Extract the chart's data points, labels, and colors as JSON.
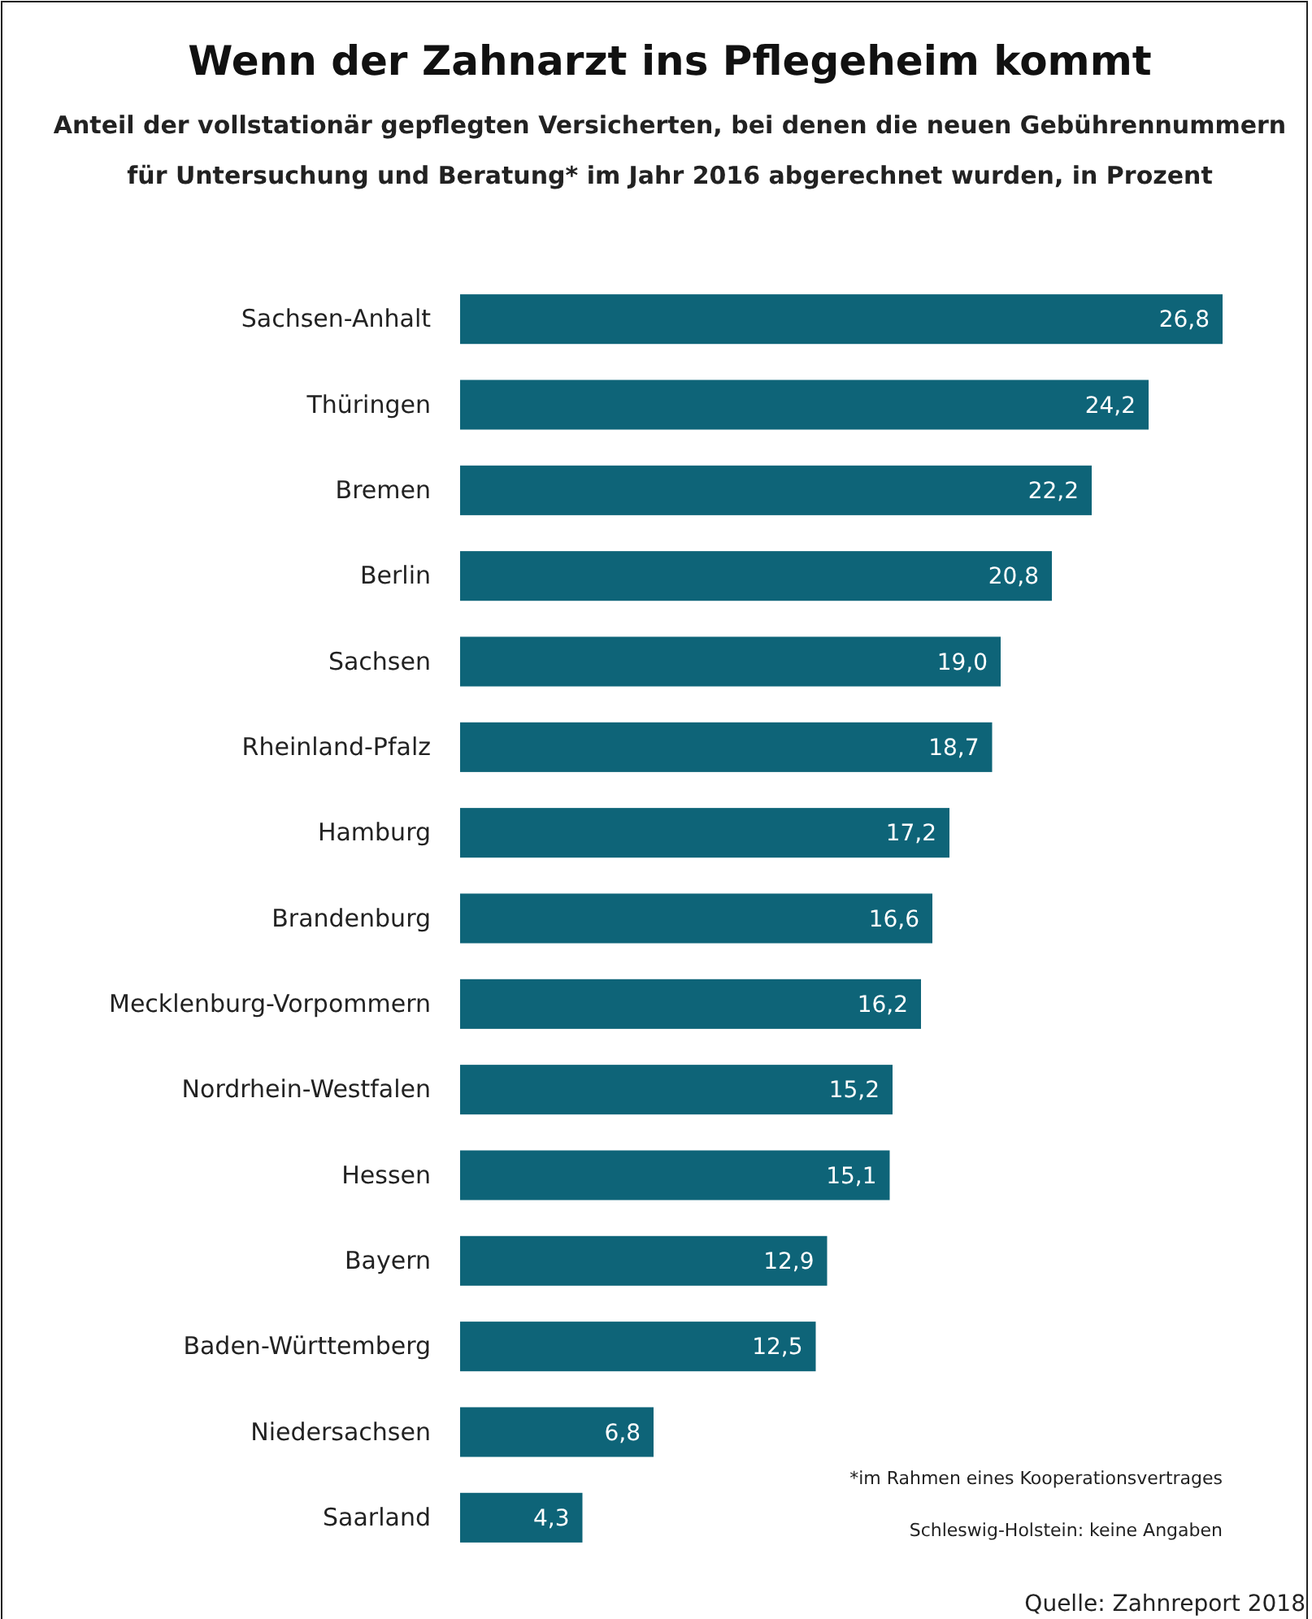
{
  "chart_data": {
    "type": "bar",
    "orientation": "horizontal",
    "title": "Wenn der Zahnarzt ins Pflegeheim kommt",
    "subtitle": "Anteil der vollstationär gepflegten Versicherten, bei denen die neuen Gebührennummern für Untersuchung und Beratung* im Jahr 2016 abgerechnet wurden, in Prozent",
    "categories": [
      "Sachsen-Anhalt",
      "Thüringen",
      "Bremen",
      "Berlin",
      "Sachsen",
      "Rheinland-Pfalz",
      "Hamburg",
      "Brandenburg",
      "Mecklenburg-Vorpommern",
      "Nordrhein-Westfalen",
      "Hessen",
      "Bayern",
      "Baden-Württemberg",
      "Niedersachsen",
      "Saarland"
    ],
    "values": [
      26.8,
      24.2,
      22.2,
      20.8,
      19.0,
      18.7,
      17.2,
      16.6,
      16.2,
      15.2,
      15.1,
      12.9,
      12.5,
      6.8,
      4.3
    ],
    "color": "#0e6478",
    "value_labels": [
      "26,8",
      "24,2",
      "22,2",
      "20,8",
      "19,0",
      "18,7",
      "17,2",
      "16,6",
      "16,2",
      "15,2",
      "15,1",
      "12,9",
      "12,5",
      "6,8",
      "4,3"
    ],
    "annotations": [
      "*im Rahmen eines Kooperationsvertrages",
      "Schleswig-Holstein: keine Angaben",
      "Quelle: Zahnreport 2018"
    ]
  }
}
